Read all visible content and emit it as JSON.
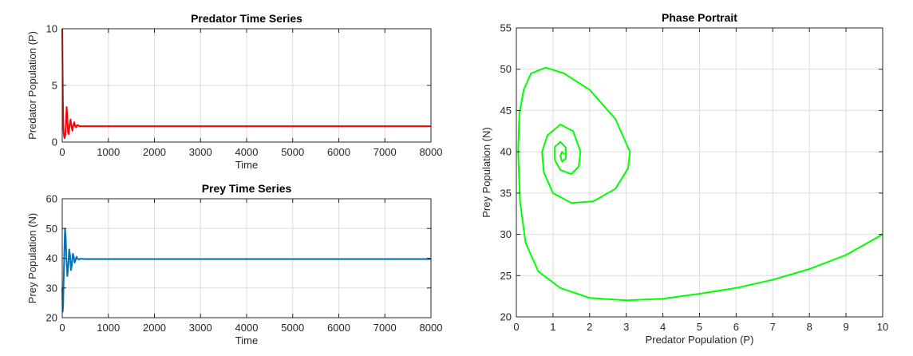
{
  "chart_data": [
    {
      "id": "predator",
      "type": "line",
      "title": "Predator Time Series",
      "xlabel": "Time",
      "ylabel": "Predator Population (P)",
      "xlim": [
        0,
        8000
      ],
      "ylim": [
        0,
        10
      ],
      "xticks": [
        0,
        1000,
        2000,
        3000,
        4000,
        5000,
        6000,
        7000,
        8000
      ],
      "yticks": [
        0,
        5,
        10
      ],
      "grid": true,
      "color": "#ff0000",
      "series": [
        {
          "x": [
            0,
            6,
            14,
            22,
            30,
            40,
            52,
            65,
            80,
            95,
            110,
            125,
            140,
            160,
            180,
            200,
            220,
            240,
            260,
            280,
            300,
            320,
            340,
            370,
            400,
            500,
            1000,
            2000,
            4000,
            6000,
            8000
          ],
          "y": [
            10,
            7.5,
            4,
            1.8,
            0.9,
            0.5,
            0.35,
            0.6,
            1.6,
            3.1,
            2.2,
            0.9,
            0.7,
            1.5,
            2.0,
            1.4,
            1.0,
            1.5,
            1.75,
            1.4,
            1.3,
            1.48,
            1.5,
            1.4,
            1.4,
            1.4,
            1.4,
            1.4,
            1.4,
            1.4,
            1.4
          ]
        }
      ]
    },
    {
      "id": "prey",
      "type": "line",
      "title": "Prey Time Series",
      "xlabel": "Time",
      "ylabel": "Prey Population (N)",
      "xlim": [
        0,
        8000
      ],
      "ylim": [
        20,
        60
      ],
      "xticks": [
        0,
        1000,
        2000,
        3000,
        4000,
        5000,
        6000,
        7000,
        8000
      ],
      "yticks": [
        20,
        30,
        40,
        50,
        60
      ],
      "grid": true,
      "color": "#0072bd",
      "series": [
        {
          "x": [
            0,
            10,
            20,
            30,
            45,
            60,
            75,
            90,
            110,
            130,
            150,
            170,
            190,
            210,
            230,
            250,
            270,
            290,
            310,
            330,
            360,
            400,
            500,
            1000,
            2000,
            4000,
            6000,
            8000
          ],
          "y": [
            30,
            22,
            24,
            32,
            42,
            50,
            47,
            40,
            34,
            37,
            43,
            41,
            36,
            38,
            41.5,
            40.5,
            38.5,
            39.5,
            40.5,
            39.8,
            39.6,
            39.8,
            39.7,
            39.7,
            39.7,
            39.7,
            39.7,
            39.7
          ]
        }
      ]
    },
    {
      "id": "phase",
      "type": "line",
      "title": "Phase Portrait",
      "xlabel": "Predator Population (P)",
      "ylabel": "Prey Population (N)",
      "xlim": [
        0,
        10
      ],
      "ylim": [
        20,
        55
      ],
      "xticks": [
        0,
        1,
        2,
        3,
        4,
        5,
        6,
        7,
        8,
        9,
        10
      ],
      "yticks": [
        20,
        25,
        30,
        35,
        40,
        45,
        50,
        55
      ],
      "grid": true,
      "color": "#00ff00",
      "series": [
        {
          "x": [
            10,
            9,
            8,
            7,
            6,
            5,
            4,
            3,
            2,
            1.2,
            0.6,
            0.25,
            0.1,
            0.05,
            0.08,
            0.2,
            0.4,
            0.8,
            1.3,
            2.0,
            2.7,
            3.1,
            3.05,
            2.7,
            2.1,
            1.5,
            1.0,
            0.75,
            0.7,
            0.85,
            1.2,
            1.55,
            1.75,
            1.7,
            1.5,
            1.2,
            1.05,
            1.05,
            1.2,
            1.35,
            1.35,
            1.25,
            1.2,
            1.25,
            1.3
          ],
          "y": [
            30,
            27.5,
            25.8,
            24.5,
            23.5,
            22.8,
            22.2,
            22.0,
            22.3,
            23.5,
            25.5,
            29.0,
            34.0,
            40.0,
            44.5,
            47.5,
            49.5,
            50.2,
            49.5,
            47.5,
            44.0,
            40.0,
            38.0,
            35.5,
            34.0,
            33.8,
            35.0,
            37.5,
            40.0,
            42.0,
            43.3,
            42.5,
            40.0,
            38.2,
            37.3,
            37.8,
            39.0,
            40.6,
            41.2,
            40.5,
            39.2,
            38.8,
            39.5,
            40.0,
            39.7
          ]
        }
      ]
    }
  ]
}
